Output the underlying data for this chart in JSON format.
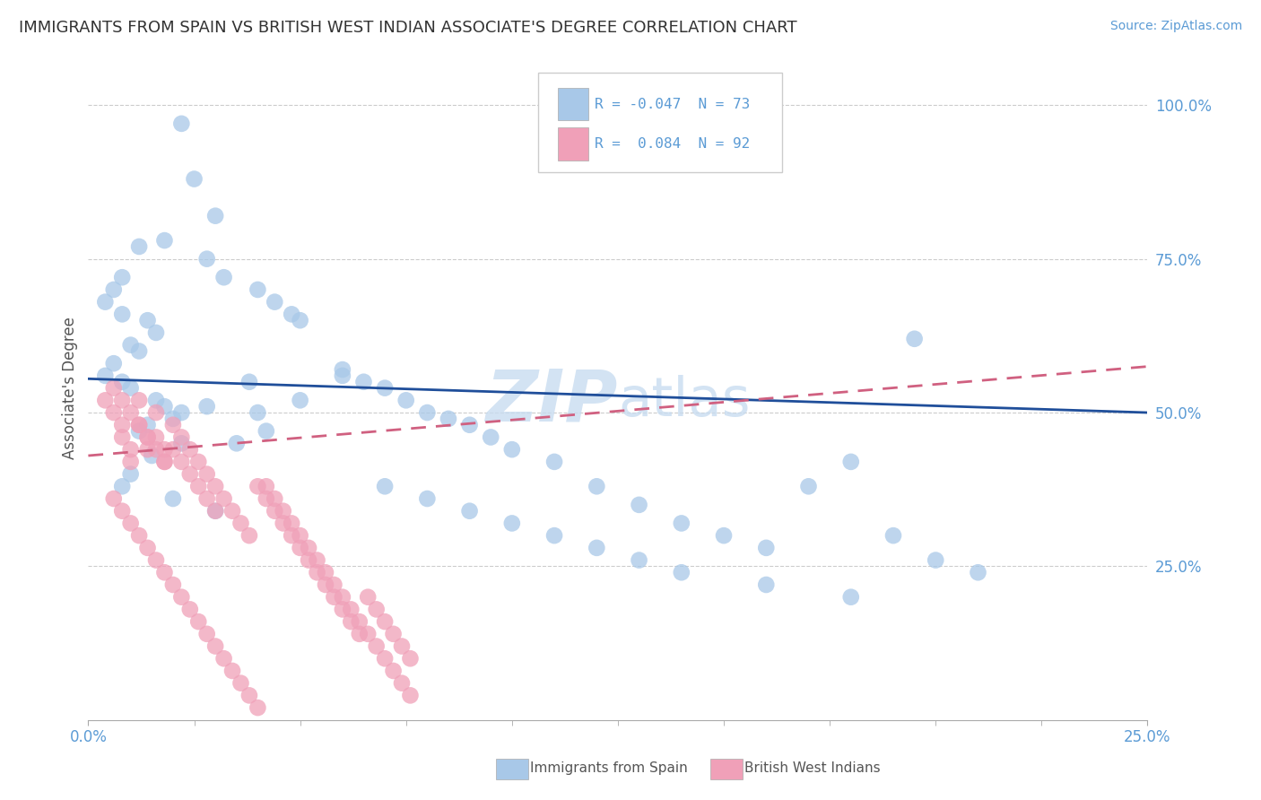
{
  "title": "IMMIGRANTS FROM SPAIN VS BRITISH WEST INDIAN ASSOCIATE'S DEGREE CORRELATION CHART",
  "source": "Source: ZipAtlas.com",
  "ylabel": "Associate's Degree",
  "xlabel_blue": "Immigrants from Spain",
  "xlabel_pink": "British West Indians",
  "xlim": [
    0.0,
    0.25
  ],
  "ylim": [
    0.0,
    1.08
  ],
  "ytick_vals": [
    0.25,
    0.5,
    0.75,
    1.0
  ],
  "ytick_labels": [
    "25.0%",
    "50.0%",
    "75.0%",
    "100.0%"
  ],
  "xtick_vals": [
    0.0,
    0.25
  ],
  "xtick_labels": [
    "0.0%",
    "25.0%"
  ],
  "blue_color": "#A8C8E8",
  "pink_color": "#F0A0B8",
  "blue_line_color": "#1F4E9A",
  "pink_line_color": "#D06080",
  "tick_color": "#5B9BD5",
  "watermark_color": "#C8DCF0",
  "blue_line_y0": 0.555,
  "blue_line_y1": 0.5,
  "pink_line_y0": 0.43,
  "pink_line_y1": 0.575,
  "blue_x": [
    0.022,
    0.03,
    0.018,
    0.012,
    0.008,
    0.006,
    0.004,
    0.008,
    0.014,
    0.016,
    0.01,
    0.012,
    0.006,
    0.004,
    0.008,
    0.01,
    0.016,
    0.018,
    0.022,
    0.02,
    0.014,
    0.012,
    0.028,
    0.032,
    0.04,
    0.044,
    0.048,
    0.05,
    0.038,
    0.028,
    0.06,
    0.065,
    0.07,
    0.075,
    0.08,
    0.085,
    0.09,
    0.095,
    0.1,
    0.11,
    0.12,
    0.13,
    0.14,
    0.15,
    0.16,
    0.17,
    0.18,
    0.19,
    0.2,
    0.21,
    0.022,
    0.015,
    0.01,
    0.008,
    0.02,
    0.03,
    0.035,
    0.04,
    0.042,
    0.05,
    0.06,
    0.07,
    0.08,
    0.09,
    0.1,
    0.11,
    0.12,
    0.13,
    0.14,
    0.16,
    0.18,
    0.195,
    0.025
  ],
  "blue_y": [
    0.97,
    0.82,
    0.78,
    0.77,
    0.72,
    0.7,
    0.68,
    0.66,
    0.65,
    0.63,
    0.61,
    0.6,
    0.58,
    0.56,
    0.55,
    0.54,
    0.52,
    0.51,
    0.5,
    0.49,
    0.48,
    0.47,
    0.75,
    0.72,
    0.7,
    0.68,
    0.66,
    0.65,
    0.55,
    0.51,
    0.57,
    0.55,
    0.54,
    0.52,
    0.5,
    0.49,
    0.48,
    0.46,
    0.44,
    0.42,
    0.38,
    0.35,
    0.32,
    0.3,
    0.28,
    0.38,
    0.42,
    0.3,
    0.26,
    0.24,
    0.45,
    0.43,
    0.4,
    0.38,
    0.36,
    0.34,
    0.45,
    0.5,
    0.47,
    0.52,
    0.56,
    0.38,
    0.36,
    0.34,
    0.32,
    0.3,
    0.28,
    0.26,
    0.24,
    0.22,
    0.2,
    0.62,
    0.88
  ],
  "pink_x": [
    0.004,
    0.006,
    0.008,
    0.008,
    0.01,
    0.01,
    0.012,
    0.012,
    0.014,
    0.014,
    0.016,
    0.016,
    0.018,
    0.018,
    0.02,
    0.02,
    0.022,
    0.022,
    0.024,
    0.024,
    0.026,
    0.026,
    0.028,
    0.028,
    0.03,
    0.03,
    0.032,
    0.034,
    0.036,
    0.038,
    0.04,
    0.042,
    0.044,
    0.046,
    0.048,
    0.05,
    0.052,
    0.054,
    0.056,
    0.058,
    0.06,
    0.062,
    0.064,
    0.066,
    0.068,
    0.07,
    0.072,
    0.074,
    0.076,
    0.006,
    0.008,
    0.01,
    0.012,
    0.014,
    0.016,
    0.018,
    0.02,
    0.022,
    0.024,
    0.026,
    0.028,
    0.03,
    0.032,
    0.034,
    0.036,
    0.038,
    0.04,
    0.042,
    0.044,
    0.046,
    0.048,
    0.05,
    0.052,
    0.054,
    0.056,
    0.058,
    0.06,
    0.062,
    0.064,
    0.066,
    0.068,
    0.07,
    0.072,
    0.074,
    0.076,
    0.006,
    0.008,
    0.01,
    0.012,
    0.014,
    0.016,
    0.018
  ],
  "pink_y": [
    0.52,
    0.5,
    0.48,
    0.46,
    0.44,
    0.42,
    0.52,
    0.48,
    0.46,
    0.44,
    0.5,
    0.46,
    0.44,
    0.42,
    0.48,
    0.44,
    0.46,
    0.42,
    0.44,
    0.4,
    0.42,
    0.38,
    0.4,
    0.36,
    0.38,
    0.34,
    0.36,
    0.34,
    0.32,
    0.3,
    0.38,
    0.36,
    0.34,
    0.32,
    0.3,
    0.28,
    0.26,
    0.24,
    0.22,
    0.2,
    0.18,
    0.16,
    0.14,
    0.2,
    0.18,
    0.16,
    0.14,
    0.12,
    0.1,
    0.36,
    0.34,
    0.32,
    0.3,
    0.28,
    0.26,
    0.24,
    0.22,
    0.2,
    0.18,
    0.16,
    0.14,
    0.12,
    0.1,
    0.08,
    0.06,
    0.04,
    0.02,
    0.38,
    0.36,
    0.34,
    0.32,
    0.3,
    0.28,
    0.26,
    0.24,
    0.22,
    0.2,
    0.18,
    0.16,
    0.14,
    0.12,
    0.1,
    0.08,
    0.06,
    0.04,
    0.54,
    0.52,
    0.5,
    0.48,
    0.46,
    0.44,
    0.42
  ]
}
